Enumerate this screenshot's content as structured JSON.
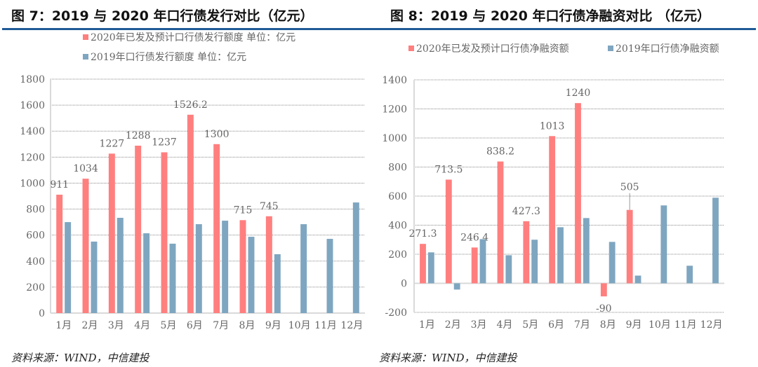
{
  "chart_data": [
    {
      "type": "bar",
      "title": "图 7：2019 与 2020 年口行债发行对比（亿元）",
      "categories": [
        "1月",
        "2月",
        "3月",
        "4月",
        "5月",
        "6月",
        "7月",
        "8月",
        "9月",
        "10月",
        "11月",
        "12月"
      ],
      "series": [
        {
          "name": "2020年已发及预计口行债发行额度 单位：亿元",
          "color": "#ff7f7f",
          "values": [
            911,
            1034,
            1227,
            1288,
            1237,
            1526.2,
            1300,
            715,
            745,
            null,
            null,
            null
          ],
          "labels": [
            "911",
            "1034",
            "1227",
            "1288",
            "1237",
            "1526.2",
            "1300",
            "715",
            "745",
            "",
            "",
            ""
          ]
        },
        {
          "name": "2019年口行债发行额度 单位：亿元",
          "color": "#7fa6c0",
          "values": [
            700,
            550,
            733,
            614,
            534,
            684,
            711,
            587,
            453,
            684,
            571,
            851
          ]
        }
      ],
      "ylim": [
        0,
        1800
      ],
      "yticks": [
        0,
        200,
        400,
        600,
        800,
        1000,
        1200,
        1400,
        1600,
        1800
      ],
      "grid": true,
      "legend": "top-left",
      "source": "资料来源：WIND，中信建投"
    },
    {
      "type": "bar",
      "title": "图 8：2019 与 2020 年口行债净融资对比  （亿元）",
      "categories": [
        "1月",
        "2月",
        "3月",
        "4月",
        "5月",
        "6月",
        "7月",
        "8月",
        "9月",
        "10月",
        "11月",
        "12月"
      ],
      "series": [
        {
          "name": "2020年已发及预计口行债净融资额",
          "color": "#ff7f7f",
          "values": [
            271.3,
            713.5,
            246.4,
            838.2,
            427.3,
            1013,
            1240,
            -90,
            505,
            null,
            null,
            null
          ],
          "labels": [
            "271.3",
            "713.5",
            "246.4",
            "838.2",
            "427.3",
            "1013",
            "1240",
            "-90",
            "505",
            "",
            "",
            ""
          ]
        },
        {
          "name": "2019年口行债净融资额",
          "color": "#7fa6c0",
          "values": [
            213,
            -43,
            304,
            193,
            300,
            386,
            449,
            285,
            53,
            536,
            121,
            589
          ]
        }
      ],
      "ylim": [
        -200,
        1400
      ],
      "yticks": [
        -200,
        0,
        200,
        400,
        600,
        800,
        1000,
        1200,
        1400
      ],
      "grid": true,
      "legend": "top",
      "source": "资料来源：WIND，中信建投"
    }
  ]
}
